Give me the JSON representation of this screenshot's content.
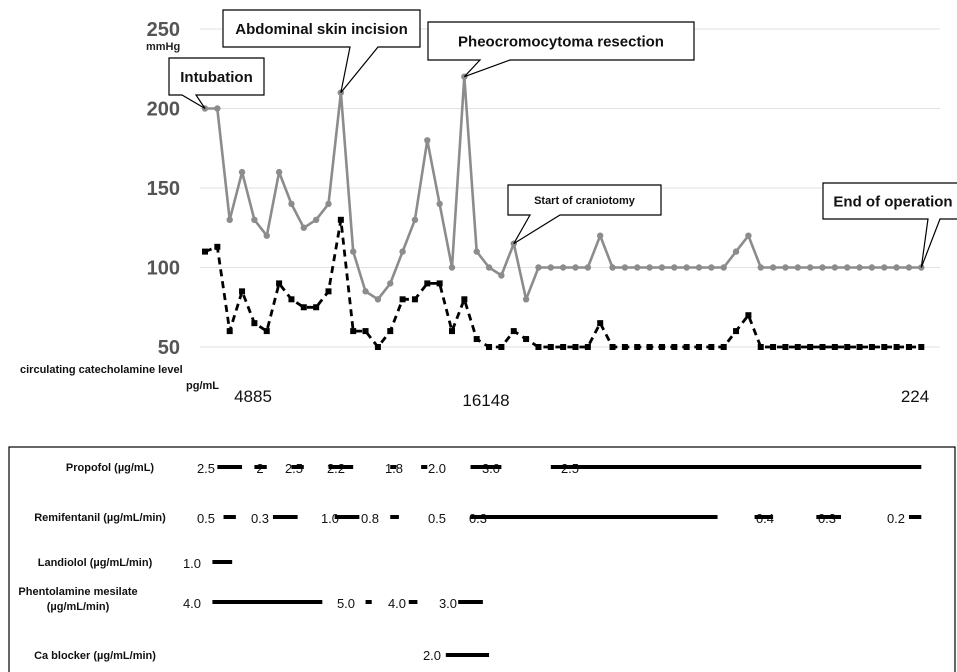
{
  "chart_data": {
    "type": "line",
    "y_unit": "mmHg",
    "yticks": [
      "250",
      "200",
      "150",
      "100",
      "50"
    ],
    "ylim": [
      50,
      250
    ],
    "grid": true,
    "series": [
      {
        "color": "#8c8c8c",
        "style": "solid",
        "marker": "circle",
        "values": [
          200,
          200,
          130,
          160,
          130,
          120,
          160,
          140,
          125,
          130,
          140,
          210,
          110,
          85,
          80,
          90,
          110,
          130,
          180,
          140,
          100,
          220,
          110,
          100,
          95,
          115,
          80,
          100,
          100,
          100,
          100,
          100,
          120,
          100,
          100,
          100,
          100,
          100,
          100,
          100,
          100,
          100,
          100,
          110,
          120,
          100,
          100,
          100,
          100,
          100,
          100,
          100,
          100,
          100,
          100,
          100,
          100,
          100,
          100
        ]
      },
      {
        "color": "#000000",
        "style": "dashed",
        "marker": "square",
        "values": [
          110,
          113,
          60,
          85,
          65,
          60,
          90,
          80,
          75,
          75,
          85,
          130,
          60,
          60,
          50,
          60,
          80,
          80,
          90,
          90,
          60,
          80,
          55,
          50,
          50,
          60,
          55,
          50,
          50,
          50,
          50,
          50,
          65,
          50,
          50,
          50,
          50,
          50,
          50,
          50,
          50,
          50,
          50,
          60,
          70,
          50,
          50,
          50,
          50,
          50,
          50,
          50,
          50,
          50,
          50,
          50,
          50,
          50,
          50
        ]
      }
    ],
    "annotations": [
      {
        "text": "Intubation",
        "index": 0,
        "value": 200
      },
      {
        "text": "Abdominal skin incision",
        "index": 11,
        "value": 210
      },
      {
        "text": "Pheocromocytoma resection",
        "index": 21,
        "value": 220
      },
      {
        "text": "Start of craniotomy",
        "index": 25,
        "value": 115
      },
      {
        "text": "End of operation",
        "index": 58,
        "value": 100
      }
    ],
    "catecholamine": {
      "title": "circulating catecholamine  level",
      "unit": "pg/mL",
      "values": [
        {
          "text": "4885",
          "index": 3
        },
        {
          "text": "16148",
          "index": 22
        },
        {
          "text": "224",
          "index": 56
        }
      ]
    }
  },
  "drugs": [
    {
      "name": "Propofol (µg/mL)",
      "bars": [
        {
          "label": "2.5",
          "from": 1,
          "to": 3
        },
        {
          "label": "2",
          "from": 4,
          "to": 5
        },
        {
          "label": "2.5",
          "from": 7,
          "to": 8
        },
        {
          "label": "2.2",
          "from": 10,
          "to": 12
        },
        {
          "label": "1.8",
          "from": 15,
          "to": 15.5
        },
        {
          "label": "2.0",
          "from": 17.5,
          "to": 18
        },
        {
          "label": "3.0",
          "from": 21.5,
          "to": 24
        },
        {
          "label": "2.5",
          "from": 28,
          "to": 58
        }
      ]
    },
    {
      "name": "Remifentanil (µg/mL/min)",
      "bars": [
        {
          "label": "0.5",
          "from": 1.5,
          "to": 2.5
        },
        {
          "label": "0.3",
          "from": 5.5,
          "to": 7.5
        },
        {
          "label": "1.0",
          "from": 10.5,
          "to": 12.5
        },
        {
          "label": "0.8",
          "from": 15,
          "to": 15.7
        },
        {
          "label": "0.5",
          "from": 0,
          "to": 0
        },
        {
          "label": "0.3",
          "from": 21.5,
          "to": 41.5
        },
        {
          "label": "0.4",
          "from": 44.5,
          "to": 46
        },
        {
          "label": "0.3",
          "from": 49.5,
          "to": 51.5
        },
        {
          "label": "0.2",
          "from": 57,
          "to": 58
        }
      ]
    },
    {
      "name": "Landiolol (µg/mL/min)",
      "bars": [
        {
          "label": "1.0",
          "from": 0.6,
          "to": 2.2
        }
      ]
    },
    {
      "name": "Phentolamine mesilate",
      "name2": "(µg/mL/min)",
      "bars": [
        {
          "label": "4.0",
          "from": 0.6,
          "to": 9.5
        },
        {
          "label": "5.0",
          "from": 13,
          "to": 13.5
        },
        {
          "label": "4.0",
          "from": 16.5,
          "to": 17.2
        },
        {
          "label": "3.0",
          "from": 20.5,
          "to": 22.5
        }
      ]
    },
    {
      "name": "Ca blocker (µg/mL/min)",
      "bars": [
        {
          "label": "2.0",
          "from": 19.5,
          "to": 23
        }
      ]
    }
  ]
}
